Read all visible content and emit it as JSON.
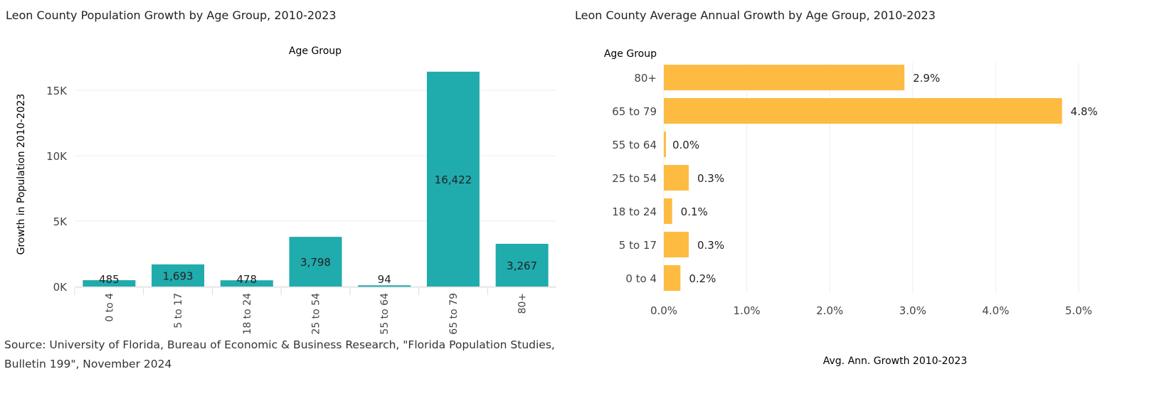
{
  "chart_data": [
    {
      "type": "bar",
      "title": "Leon County Population Growth by Age Group, 2010-2023",
      "xlabel": "Age Group",
      "ylabel": "Growth in Population 2010-2023",
      "categories": [
        "0 to 4",
        "5 to 17",
        "18 to 24",
        "25 to 54",
        "55 to 64",
        "65 to 79",
        "80+"
      ],
      "values": [
        485,
        1693,
        478,
        3798,
        94,
        16422,
        3267
      ],
      "data_labels": [
        "485",
        "1,693",
        "478",
        "3,798",
        "94",
        "16,422",
        "3,267"
      ],
      "yticks": [
        0,
        5000,
        10000,
        15000
      ],
      "ytick_labels": [
        "0K",
        "5K",
        "10K",
        "15K"
      ],
      "ylim": [
        0,
        17000
      ],
      "grid": true,
      "color": "#20ABAD"
    },
    {
      "type": "bar",
      "orientation": "horizontal",
      "title": "Leon County Average Annual Growth by Age Group, 2010-2023",
      "ylabel": "Age Group",
      "xlabel": "Avg. Ann. Growth 2010-2023",
      "categories": [
        "80+",
        "65 to 79",
        "55 to 64",
        "25 to 54",
        "18 to 24",
        "5 to 17",
        "0 to 4"
      ],
      "values": [
        2.9,
        4.8,
        0.0,
        0.3,
        0.1,
        0.3,
        0.2
      ],
      "data_labels": [
        "2.9%",
        "4.8%",
        "0.0%",
        "0.3%",
        "0.1%",
        "0.3%",
        "0.2%"
      ],
      "xticks": [
        0,
        1,
        2,
        3,
        4,
        5
      ],
      "xtick_labels": [
        "0.0%",
        "1.0%",
        "2.0%",
        "3.0%",
        "4.0%",
        "5.0%"
      ],
      "xlim": [
        0,
        5.35
      ],
      "grid": true,
      "color": "#FDBB42"
    }
  ],
  "source": "Source: University of Florida, Bureau of Economic & Business Research, \"Florida Population Studies, Bulletin 199\", November 2024"
}
